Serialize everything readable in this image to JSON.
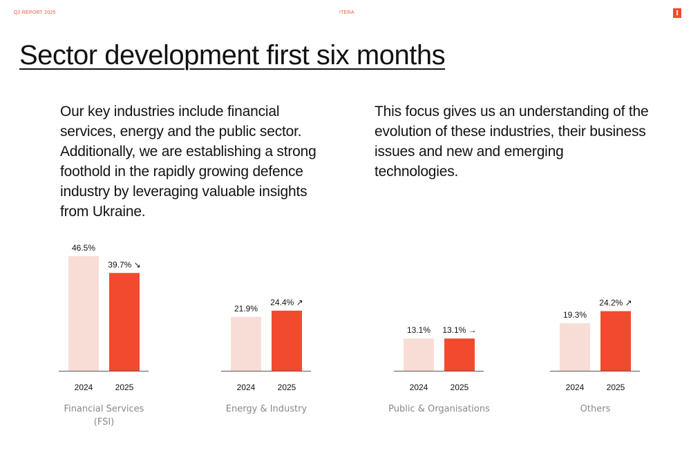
{
  "header": {
    "report_label": "Q2 REPORT 2025",
    "company": "ITERA",
    "logo_letter": "I",
    "accent_color": "#f24a2f"
  },
  "page": {
    "title": "Sector development first six months",
    "paragraph_left": "Our key industries include financial services, energy and the public sector. Additionally, we are establishing a strong foothold in the rapidly growing defence industry by leveraging valuable insights from Ukraine.",
    "paragraph_right": "This focus gives us an understanding of the evolution of these industries, their business issues and new and emerging technologies."
  },
  "chart_data": {
    "type": "bar",
    "years": [
      "2024",
      "2025"
    ],
    "colors": {
      "2024": "#f8ddd7",
      "2025": "#f24a2f"
    },
    "grid": false,
    "groups": [
      {
        "category": [
          "Financial Services",
          "(FSI)"
        ],
        "values": [
          46.5,
          39.7
        ],
        "labels": [
          "46.5%",
          "39.7%"
        ],
        "trend": "down"
      },
      {
        "category": [
          "Energy & Industry"
        ],
        "values": [
          21.9,
          24.4
        ],
        "labels": [
          "21.9%",
          "24.4%"
        ],
        "trend": "up"
      },
      {
        "category": [
          "Public & Organisations"
        ],
        "values": [
          13.1,
          13.1
        ],
        "labels": [
          "13.1%",
          "13.1%"
        ],
        "trend": "flat"
      },
      {
        "category": [
          "Others"
        ],
        "values": [
          19.3,
          24.2
        ],
        "labels": [
          "19.3%",
          "24.2%"
        ],
        "trend": "up"
      }
    ]
  }
}
